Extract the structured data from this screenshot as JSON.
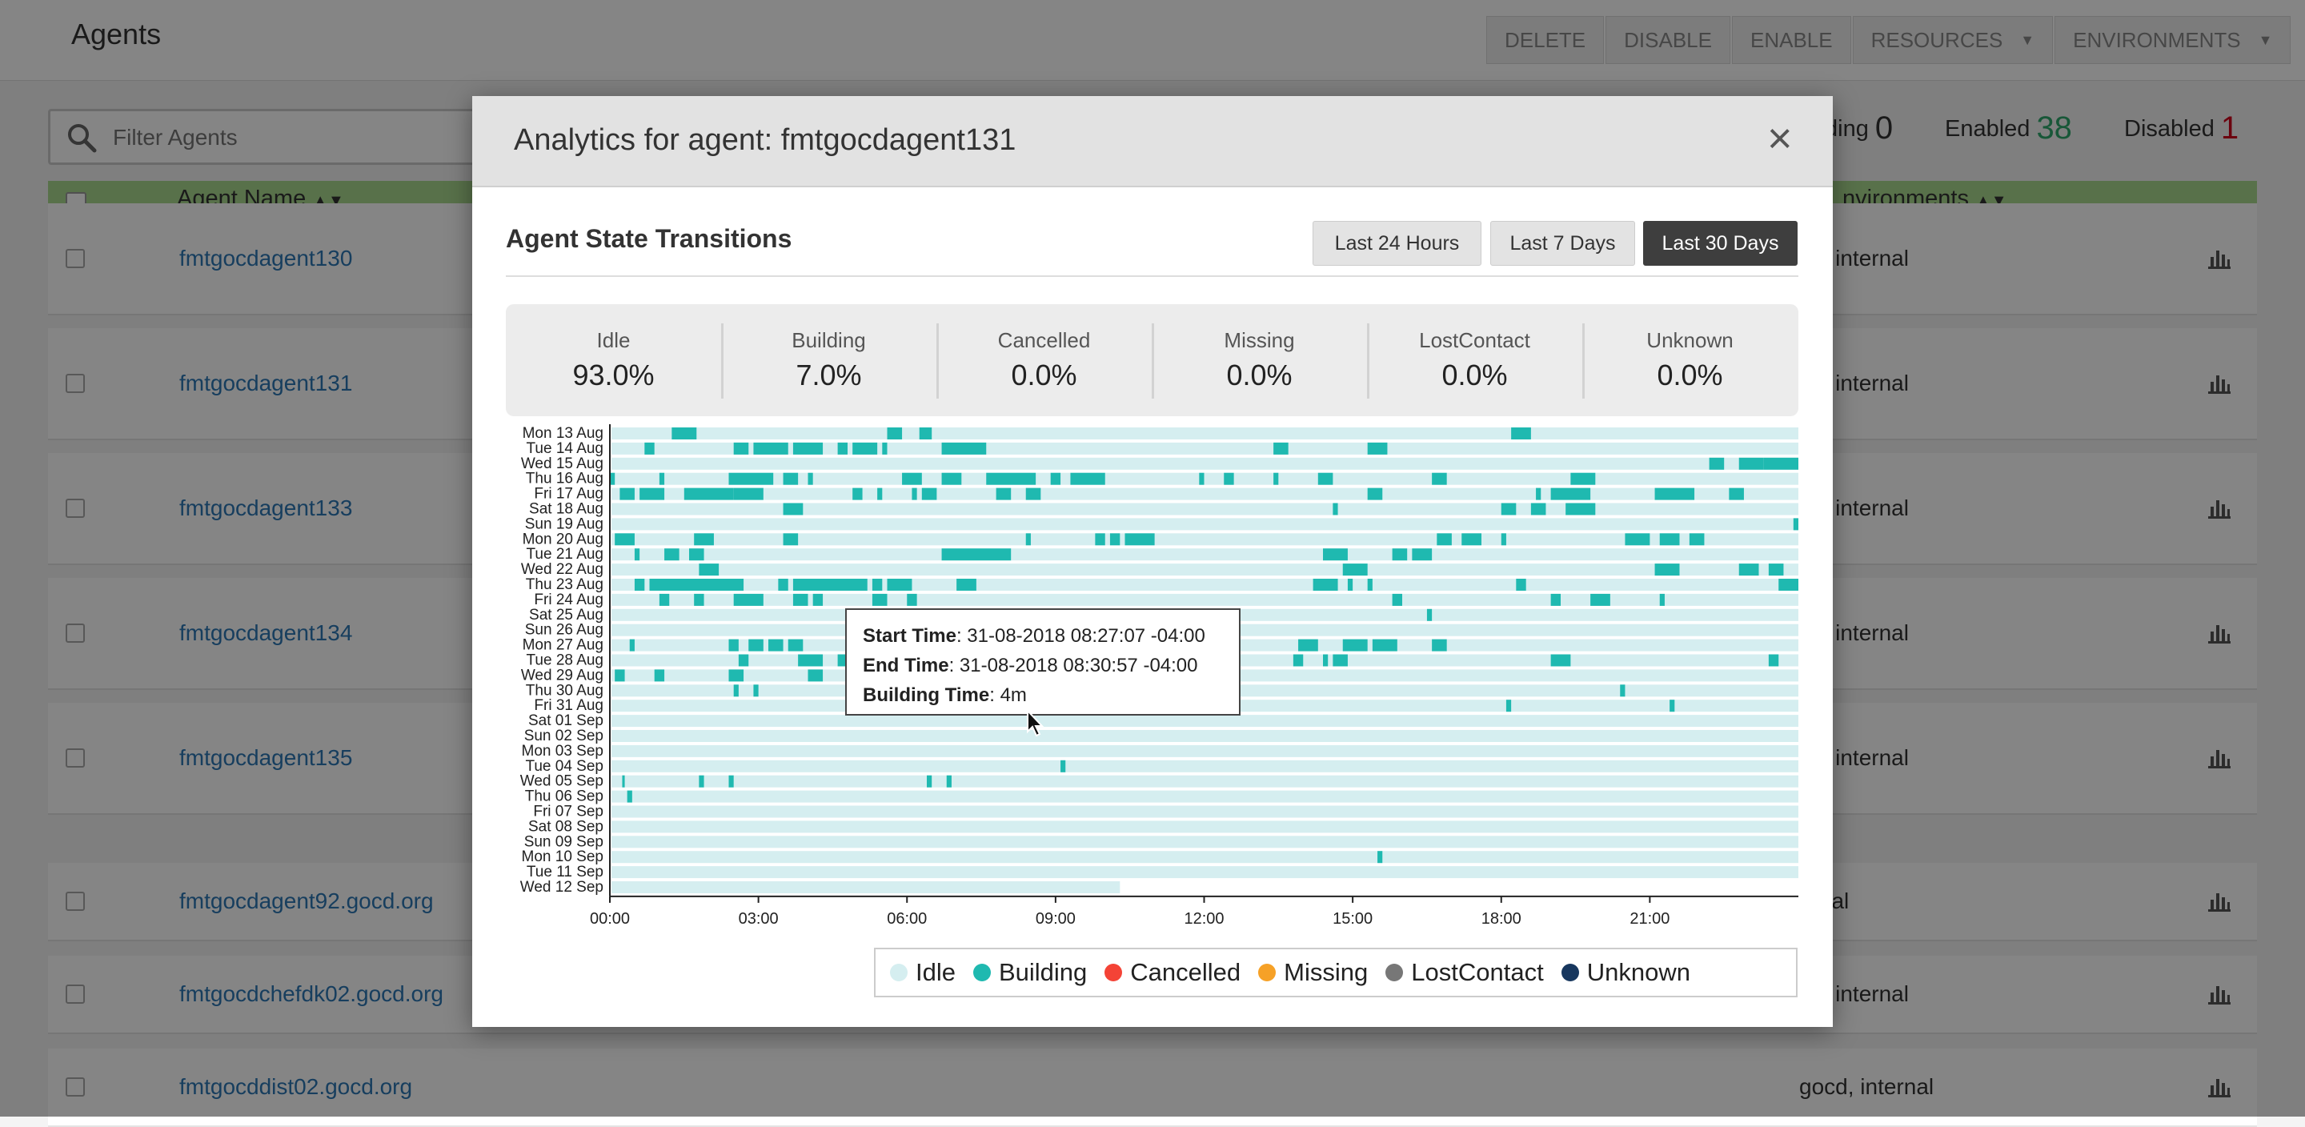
{
  "page": {
    "title": "Agents",
    "toolbar": [
      "DELETE",
      "DISABLE",
      "ENABLE",
      "RESOURCES",
      "ENVIRONMENTS"
    ],
    "filter_placeholder": "Filter Agents",
    "counts": {
      "pending_label": "ding",
      "pending": "0",
      "enabled_label": "Enabled",
      "enabled": "38",
      "disabled_label": "Disabled",
      "disabled": "1"
    },
    "columns": {
      "agent_name": "Agent Name",
      "environments": "nvironments"
    },
    "rows": [
      {
        "name": "fmtgocdagent130",
        "env": "cd, internal"
      },
      {
        "name": "fmtgocdagent131",
        "env": "cd, internal"
      },
      {
        "name": "fmtgocdagent133",
        "env": "cd, internal"
      },
      {
        "name": "fmtgocdagent134",
        "env": "cd, internal"
      },
      {
        "name": "fmtgocdagent135",
        "env": "cd, internal"
      },
      {
        "name": "fmtgocdagent92.gocd.org",
        "env": "ernal"
      },
      {
        "name": "fmtgocdchefdk02.gocd.org",
        "env": "cd, internal"
      },
      {
        "name": "fmtgocddist02.gocd.org",
        "env": "gocd, internal"
      }
    ]
  },
  "modal": {
    "title": "Analytics for agent: fmtgocdagent131",
    "close": "×",
    "section_title": "Agent State Transitions",
    "range_buttons": [
      "Last 24 Hours",
      "Last 7 Days",
      "Last 30 Days"
    ],
    "active_range": "Last 30 Days",
    "stats": [
      {
        "label": "Idle",
        "value": "93.0%"
      },
      {
        "label": "Building",
        "value": "7.0%"
      },
      {
        "label": "Cancelled",
        "value": "0.0%"
      },
      {
        "label": "Missing",
        "value": "0.0%"
      },
      {
        "label": "LostContact",
        "value": "0.0%"
      },
      {
        "label": "Unknown",
        "value": "0.0%"
      }
    ],
    "tooltip": {
      "start_label": "Start Time",
      "start": "31-08-2018 08:27:07 -04:00",
      "end_label": "End Time",
      "end": "31-08-2018 08:30:57 -04:00",
      "building_label": "Building Time",
      "building": "4m"
    },
    "legend": [
      {
        "label": "Idle",
        "color": "#d5eef0"
      },
      {
        "label": "Building",
        "color": "#1fb9b0"
      },
      {
        "label": "Cancelled",
        "color": "#f44336"
      },
      {
        "label": "Missing",
        "color": "#f6a127"
      },
      {
        "label": "LostContact",
        "color": "#777777"
      },
      {
        "label": "Unknown",
        "color": "#17375e"
      }
    ]
  },
  "chart_data": {
    "type": "heatmap",
    "title": "Agent State Transitions",
    "x_ticks": [
      "00:00",
      "03:00",
      "06:00",
      "09:00",
      "12:00",
      "15:00",
      "18:00",
      "21:00"
    ],
    "x_range_hours": [
      0,
      24
    ],
    "rows": [
      "Mon 13 Aug",
      "Tue 14 Aug",
      "Wed 15 Aug",
      "Thu 16 Aug",
      "Fri 17 Aug",
      "Sat 18 Aug",
      "Sun 19 Aug",
      "Mon 20 Aug",
      "Tue 21 Aug",
      "Wed 22 Aug",
      "Thu 23 Aug",
      "Fri 24 Aug",
      "Sat 25 Aug",
      "Sun 26 Aug",
      "Mon 27 Aug",
      "Tue 28 Aug",
      "Wed 29 Aug",
      "Thu 30 Aug",
      "Fri 31 Aug",
      "Sat 01 Sep",
      "Sun 02 Sep",
      "Mon 03 Sep",
      "Tue 04 Sep",
      "Wed 05 Sep",
      "Thu 06 Sep",
      "Fri 07 Sep",
      "Sat 08 Sep",
      "Sun 09 Sep",
      "Mon 10 Sep",
      "Tue 11 Sep",
      "Wed 12 Sep"
    ],
    "idle_end_last_row_hours": 10.3,
    "building_intervals_hours": [
      [
        [
          1.25,
          1.75
        ],
        [
          5.6,
          5.9
        ],
        [
          6.25,
          6.5
        ],
        [
          18.2,
          18.6
        ]
      ],
      [
        [
          0.7,
          0.9
        ],
        [
          2.5,
          2.8
        ],
        [
          2.9,
          3.6
        ],
        [
          3.7,
          4.3
        ],
        [
          4.6,
          4.8
        ],
        [
          4.9,
          5.4
        ],
        [
          5.5,
          5.6
        ],
        [
          6.7,
          7.6
        ],
        [
          13.4,
          13.7
        ],
        [
          15.3,
          15.7
        ]
      ],
      [
        [
          22.2,
          22.5
        ],
        [
          22.8,
          23.3
        ],
        [
          23.3,
          24.0
        ]
      ],
      [
        [
          0.0,
          0.1
        ],
        [
          1.0,
          1.1
        ],
        [
          2.4,
          3.3
        ],
        [
          3.5,
          3.8
        ],
        [
          4.0,
          4.1
        ],
        [
          5.9,
          6.3
        ],
        [
          6.7,
          7.1
        ],
        [
          7.6,
          8.0
        ],
        [
          8.0,
          8.6
        ],
        [
          8.9,
          9.1
        ],
        [
          9.3,
          10.0
        ],
        [
          11.9,
          12.0
        ],
        [
          12.4,
          12.6
        ],
        [
          13.4,
          13.5
        ],
        [
          14.3,
          14.6
        ],
        [
          16.6,
          16.9
        ],
        [
          19.4,
          19.9
        ]
      ],
      [
        [
          0.2,
          0.5
        ],
        [
          0.6,
          1.1
        ],
        [
          1.5,
          2.5
        ],
        [
          2.5,
          3.1
        ],
        [
          4.9,
          5.1
        ],
        [
          5.4,
          5.5
        ],
        [
          6.1,
          6.2
        ],
        [
          6.3,
          6.6
        ],
        [
          7.8,
          8.1
        ],
        [
          8.4,
          8.7
        ],
        [
          15.3,
          15.6
        ],
        [
          18.7,
          18.8
        ],
        [
          19.0,
          19.8
        ],
        [
          21.1,
          21.9
        ],
        [
          22.6,
          22.9
        ]
      ],
      [
        [
          3.5,
          3.9
        ],
        [
          14.6,
          14.7
        ],
        [
          18.0,
          18.3
        ],
        [
          18.6,
          18.9
        ],
        [
          19.3,
          19.9
        ]
      ],
      [
        [
          23.9,
          24.0
        ]
      ],
      [
        [
          0.1,
          0.5
        ],
        [
          1.7,
          2.1
        ],
        [
          3.5,
          3.8
        ],
        [
          8.4,
          8.5
        ],
        [
          9.8,
          10.0
        ],
        [
          10.1,
          10.3
        ],
        [
          10.4,
          11.0
        ],
        [
          16.7,
          17.0
        ],
        [
          17.2,
          17.6
        ],
        [
          18.0,
          18.1
        ],
        [
          20.5,
          21.0
        ],
        [
          21.2,
          21.6
        ],
        [
          21.8,
          22.1
        ]
      ],
      [
        [
          0.5,
          0.6
        ],
        [
          1.1,
          1.4
        ],
        [
          1.6,
          1.9
        ],
        [
          6.7,
          8.1
        ],
        [
          14.4,
          14.9
        ],
        [
          15.8,
          16.1
        ],
        [
          16.2,
          16.6
        ]
      ],
      [
        [
          1.8,
          2.2
        ],
        [
          14.8,
          15.3
        ],
        [
          21.1,
          21.6
        ],
        [
          22.8,
          23.2
        ],
        [
          23.4,
          23.7
        ]
      ],
      [
        [
          0.5,
          0.7
        ],
        [
          0.8,
          2.7
        ],
        [
          3.4,
          3.6
        ],
        [
          3.7,
          5.2
        ],
        [
          5.3,
          5.5
        ],
        [
          5.6,
          6.1
        ],
        [
          7.0,
          7.4
        ],
        [
          14.2,
          14.7
        ],
        [
          14.9,
          15.0
        ],
        [
          15.3,
          15.4
        ],
        [
          18.3,
          18.5
        ],
        [
          23.6,
          24.0
        ]
      ],
      [
        [
          1.0,
          1.2
        ],
        [
          1.7,
          1.9
        ],
        [
          2.5,
          3.1
        ],
        [
          3.7,
          4.0
        ],
        [
          4.1,
          4.3
        ],
        [
          5.3,
          5.6
        ],
        [
          6.0,
          6.2
        ],
        [
          15.8,
          16.0
        ],
        [
          19.0,
          19.2
        ],
        [
          19.8,
          20.2
        ],
        [
          21.2,
          21.3
        ]
      ],
      [
        [
          16.5,
          16.6
        ]
      ],
      [],
      [
        [
          0.4,
          0.5
        ],
        [
          2.4,
          2.6
        ],
        [
          2.8,
          3.1
        ],
        [
          3.2,
          3.5
        ],
        [
          3.6,
          3.9
        ],
        [
          13.9,
          14.3
        ],
        [
          14.8,
          15.3
        ],
        [
          15.4,
          15.9
        ],
        [
          16.6,
          16.9
        ]
      ],
      [
        [
          2.6,
          2.8
        ],
        [
          3.8,
          4.3
        ],
        [
          4.6,
          4.8
        ],
        [
          13.8,
          14.0
        ],
        [
          14.4,
          14.5
        ],
        [
          14.6,
          14.9
        ],
        [
          19.0,
          19.4
        ],
        [
          23.4,
          23.6
        ]
      ],
      [
        [
          0.1,
          0.3
        ],
        [
          0.9,
          1.1
        ],
        [
          2.4,
          2.7
        ],
        [
          4.0,
          4.3
        ]
      ],
      [
        [
          2.5,
          2.6
        ],
        [
          2.9,
          3.0
        ],
        [
          20.4,
          20.5
        ]
      ],
      [
        [
          18.1,
          18.2
        ],
        [
          21.4,
          21.5
        ]
      ],
      [],
      [],
      [],
      [
        [
          9.1,
          9.2
        ]
      ],
      [
        [
          0.25,
          0.3
        ],
        [
          1.8,
          1.9
        ],
        [
          2.4,
          2.5
        ],
        [
          6.4,
          6.5
        ],
        [
          6.8,
          6.9
        ]
      ],
      [
        [
          0.35,
          0.45
        ]
      ],
      [],
      [],
      [],
      [
        [
          15.5,
          15.6
        ]
      ],
      [],
      []
    ]
  }
}
